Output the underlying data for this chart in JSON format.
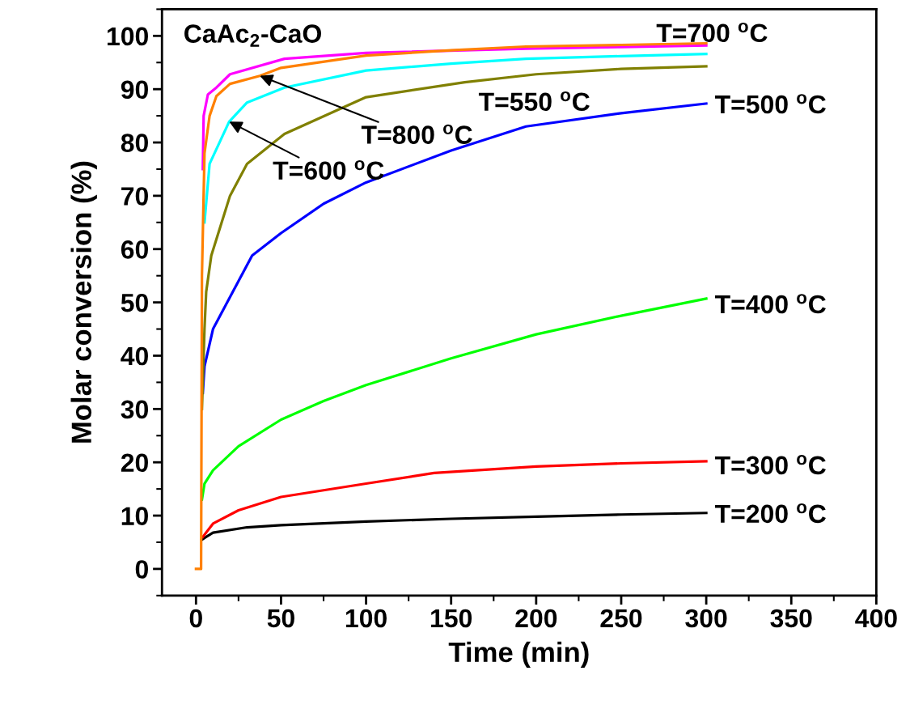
{
  "chart_data": {
    "type": "line",
    "title": "CaAc$_{2}$-CaO",
    "xlabel": "Time (min)",
    "ylabel": "Molar conversion (%)",
    "xlim": [
      -20,
      400
    ],
    "xticks": [
      0,
      50,
      100,
      150,
      200,
      250,
      300,
      350,
      400
    ],
    "ylim": [
      -5,
      105
    ],
    "yticks": [
      0,
      10,
      20,
      30,
      40,
      50,
      60,
      70,
      80,
      90,
      100
    ],
    "grid": false,
    "legend": false,
    "annotations": [
      {
        "text": "T=550 $^{o}$C",
        "x": 200,
        "y": 92.8
      },
      {
        "text": "T=600 $^{o}$C",
        "x": 19.5,
        "y": 83.9
      },
      {
        "text": "T=800 $^{o}$C",
        "x": 37.5,
        "y": 92.5
      }
    ],
    "series": [
      {
        "name": "T=200 $^{o}$C",
        "color": "#000000",
        "x": [
          3.5,
          10,
          30,
          50,
          100,
          150,
          200,
          250,
          300
        ],
        "values": [
          5.5,
          6.8,
          7.8,
          8.2,
          8.9,
          9.4,
          9.8,
          10.2,
          10.5
        ]
      },
      {
        "name": "T=300 $^{o}$C",
        "color": "#ff0000",
        "x": [
          4,
          10,
          25,
          50,
          100,
          140,
          200,
          250,
          300
        ],
        "values": [
          6,
          8.5,
          11,
          13.5,
          16,
          18,
          19.2,
          19.8,
          20.2
        ]
      },
      {
        "name": "T=400 $^{o}$C",
        "color": "#00ff00",
        "x": [
          3.5,
          5,
          10,
          25,
          50,
          75,
          100,
          150,
          200,
          250,
          300
        ],
        "values": [
          13,
          16,
          18.5,
          23,
          28,
          31.5,
          34.5,
          39.5,
          44,
          47.5,
          50.7
        ]
      },
      {
        "name": "T=500 $^{o}$C",
        "color": "#0000ff",
        "x": [
          4,
          5,
          10,
          20,
          33,
          50,
          75,
          100,
          150,
          194,
          250,
          300
        ],
        "values": [
          33,
          38,
          45,
          51,
          58.8,
          63,
          68.5,
          72.5,
          78.5,
          83,
          85.5,
          87.3
        ]
      },
      {
        "name": null,
        "color": "#808000",
        "x": [
          3.5,
          5,
          6,
          9,
          20,
          30,
          52,
          100,
          158,
          200,
          250,
          300
        ],
        "values": [
          30,
          45,
          52,
          58.8,
          70,
          76,
          81.6,
          88.5,
          91.3,
          92.8,
          93.8,
          94.3
        ]
      },
      {
        "name": null,
        "color": "#00ffff",
        "x": [
          5,
          8,
          19.5,
          30,
          52,
          100,
          150,
          194,
          250,
          300
        ],
        "values": [
          65,
          76,
          83.9,
          87.5,
          90.3,
          93.5,
          94.8,
          95.7,
          96.2,
          96.6
        ]
      },
      {
        "name": "T=700 $^{o}$C",
        "color": "#ff00ff",
        "x": [
          4,
          4.5,
          7,
          12,
          20,
          52,
          100,
          194,
          250,
          300
        ],
        "values": [
          75,
          85,
          89,
          90.3,
          92.8,
          95.7,
          96.8,
          97.6,
          97.9,
          98.2
        ]
      },
      {
        "name": null,
        "color": "#ff8000",
        "x": [
          0,
          3,
          3.5,
          5,
          8,
          12,
          20,
          37.5,
          50,
          100,
          150,
          194,
          250,
          300
        ],
        "values": [
          0,
          0,
          55,
          78,
          85,
          88.7,
          91,
          92.5,
          94,
          96.3,
          97.3,
          98,
          98.3,
          98.6
        ]
      }
    ]
  }
}
